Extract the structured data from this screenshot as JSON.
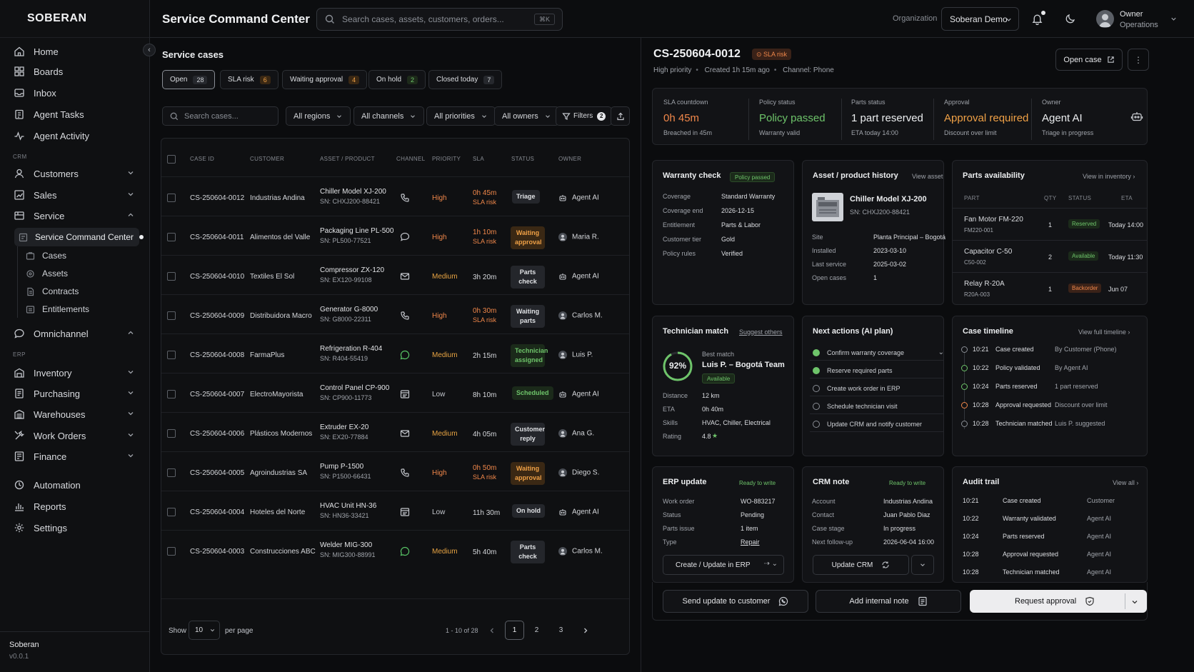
{
  "brand": {
    "name": "SOBERAN",
    "footer_name": "Soberan",
    "version": "v0.0.1"
  },
  "nav": {
    "home": "Home",
    "boards": "Boards",
    "inbox": "Inbox",
    "agent_tasks": "Agent Tasks",
    "agent_activity": "Agent Activity",
    "crm_label": "CRM",
    "customers": "Customers",
    "sales": "Sales",
    "service": "Service",
    "service_command_center": "Service Command Center",
    "cases": "Cases",
    "assets": "Assets",
    "contracts": "Contracts",
    "entitlements": "Entitlements",
    "omnichannel": "Omnichannel",
    "erp_label": "ERP",
    "inventory": "Inventory",
    "purchasing": "Purchasing",
    "warehouses": "Warehouses",
    "work_orders": "Work Orders",
    "finance": "Finance",
    "automation": "Automation",
    "reports": "Reports",
    "settings": "Settings"
  },
  "topbar": {
    "title": "Service Command Center",
    "search_placeholder": "Search cases, assets, customers, orders...",
    "search_kbd": "⌘K",
    "org_label": "Organization",
    "org_value": "Soberan Demo",
    "user_name": "Owner",
    "user_role": "Operations"
  },
  "cases": {
    "title": "Service cases",
    "tabs": [
      {
        "label": "Open",
        "count": "28"
      },
      {
        "label": "SLA risk",
        "count": "6"
      },
      {
        "label": "Waiting approval",
        "count": "4"
      },
      {
        "label": "On hold",
        "count": "2"
      },
      {
        "label": "Closed today",
        "count": "7"
      }
    ],
    "search_placeholder": "Search cases...",
    "filters": {
      "regions": "All regions",
      "channels": "All channels",
      "priorities": "All priorities",
      "owners": "All owners",
      "filters": "Filters",
      "filters_count": "2"
    },
    "columns": {
      "case_id": "CASE ID",
      "customer": "CUSTOMER",
      "asset": "ASSET / PRODUCT",
      "channel": "CHANNEL",
      "priority": "PRIORITY",
      "sla": "SLA",
      "status": "STATUS",
      "owner": "OWNER"
    },
    "rows": [
      {
        "id": "CS-250604-0012",
        "customer": "Industrias Andina",
        "asset": "Chiller Model XJ-200",
        "sn": "SN: CHXJ200-88421",
        "channel": "phone",
        "priority": "High",
        "sla": "0h 45m",
        "sla_note": "SLA risk",
        "status": "Triage",
        "owner": "Agent AI"
      },
      {
        "id": "CS-250604-0011",
        "customer": "Alimentos del Valle",
        "asset": "Packaging Line PL-500",
        "sn": "SN: PL500-77521",
        "channel": "chat",
        "priority": "High",
        "sla": "1h 10m",
        "sla_note": "SLA risk",
        "status": "Waiting approval",
        "owner": "Maria R."
      },
      {
        "id": "CS-250604-0010",
        "customer": "Textiles El Sol",
        "asset": "Compressor ZX-120",
        "sn": "SN: EX120-99108",
        "channel": "email",
        "priority": "Medium",
        "sla": "3h 20m",
        "sla_note": "",
        "status": "Parts check",
        "owner": "Agent AI"
      },
      {
        "id": "CS-250604-0009",
        "customer": "Distribuidora Macro",
        "asset": "Generator G-8000",
        "sn": "SN: G8000-22311",
        "channel": "phone",
        "priority": "High",
        "sla": "0h 30m",
        "sla_note": "SLA risk",
        "status": "Waiting parts",
        "owner": "Carlos M."
      },
      {
        "id": "CS-250604-0008",
        "customer": "FarmaPlus",
        "asset": "Refrigeration R-404",
        "sn": "SN: R404-55419",
        "channel": "whatsapp",
        "priority": "Medium",
        "sla": "2h 15m",
        "sla_note": "",
        "status": "Technician assigned",
        "owner": "Luis P."
      },
      {
        "id": "CS-250604-0007",
        "customer": "ElectroMayorista",
        "asset": "Control Panel CP-900",
        "sn": "SN: CP900-11773",
        "channel": "portal",
        "priority": "Low",
        "sla": "8h 10m",
        "sla_note": "",
        "status": "Scheduled",
        "owner": "Agent AI"
      },
      {
        "id": "CS-250604-0006",
        "customer": "Plásticos Modernos",
        "asset": "Extruder EX-20",
        "sn": "SN: EX20-77884",
        "channel": "email",
        "priority": "Medium",
        "sla": "4h 05m",
        "sla_note": "",
        "status": "Customer reply",
        "owner": "Ana G."
      },
      {
        "id": "CS-250604-0005",
        "customer": "Agroindustrias SA",
        "asset": "Pump P-1500",
        "sn": "SN: P1500-66431",
        "channel": "phone",
        "priority": "High",
        "sla": "0h 50m",
        "sla_note": "SLA risk",
        "status": "Waiting approval",
        "owner": "Diego S."
      },
      {
        "id": "CS-250604-0004",
        "customer": "Hoteles del Norte",
        "asset": "HVAC Unit HN-36",
        "sn": "SN: HN36-33421",
        "channel": "portal",
        "priority": "Low",
        "sla": "11h 30m",
        "sla_note": "",
        "status": "On hold",
        "owner": "Agent AI"
      },
      {
        "id": "CS-250604-0003",
        "customer": "Construcciones ABC",
        "asset": "Welder MIG-300",
        "sn": "SN: MIG300-88991",
        "channel": "whatsapp",
        "priority": "Medium",
        "sla": "5h 40m",
        "sla_note": "",
        "status": "Parts check",
        "owner": "Carlos M."
      }
    ],
    "footer": {
      "show": "Show",
      "per_page_value": "10",
      "per_page": "per page",
      "range": "1 - 10 of 28",
      "pages": [
        "1",
        "2",
        "3"
      ]
    }
  },
  "detail": {
    "case_id": "CS-250604-0012",
    "sla_pill": "SLA risk",
    "priority": "High priority",
    "created": "Created 1h 15m ago",
    "channel": "Channel: Phone",
    "open_case": "Open case",
    "kpis": [
      {
        "label": "SLA countdown",
        "value": "0h 45m",
        "sub": "Breached in 45m",
        "color": "#f0874a"
      },
      {
        "label": "Policy status",
        "value": "Policy passed",
        "sub": "Warranty valid",
        "color": "#6ec46a"
      },
      {
        "label": "Parts status",
        "value": "1 part reserved",
        "sub": "ETA today 14:00",
        "color": "#eceef0"
      },
      {
        "label": "Approval",
        "value": "Approval required",
        "sub": "Discount over limit",
        "color": "#f0a146"
      },
      {
        "label": "Owner",
        "value": "Agent AI",
        "sub": "Triage in progress",
        "color": "#eceef0"
      }
    ],
    "warranty": {
      "title": "Warranty check",
      "pill": "Policy passed",
      "rows": [
        {
          "k": "Coverage",
          "v": "Standard Warranty"
        },
        {
          "k": "Coverage end",
          "v": "2026-12-15"
        },
        {
          "k": "Entitlement",
          "v": "Parts & Labor"
        },
        {
          "k": "Customer tier",
          "v": "Gold"
        },
        {
          "k": "Policy rules",
          "v": "Verified"
        }
      ]
    },
    "asset": {
      "title": "Asset / product history",
      "link": "View asset",
      "name": "Chiller Model XJ-200",
      "sn": "SN: CHXJ200-88421",
      "rows": [
        {
          "k": "Site",
          "v": "Planta Principal – Bogotá"
        },
        {
          "k": "Installed",
          "v": "2023-03-10"
        },
        {
          "k": "Last service",
          "v": "2025-03-02"
        },
        {
          "k": "Open cases",
          "v": "1"
        }
      ]
    },
    "parts": {
      "title": "Parts availability",
      "link": "View in inventory",
      "cols": {
        "part": "PART",
        "qty": "QTY",
        "status": "STATUS",
        "eta": "ETA"
      },
      "rows": [
        {
          "name": "Fan Motor FM-220",
          "code": "FM220-001",
          "qty": "1",
          "status": "Reserved",
          "eta": "Today 14:00",
          "tone": "green"
        },
        {
          "name": "Capacitor C-50",
          "code": "C50-002",
          "qty": "2",
          "status": "Available",
          "eta": "Today 11:30",
          "tone": "green"
        },
        {
          "name": "Relay R-20A",
          "code": "R20A-003",
          "qty": "1",
          "status": "Backorder",
          "eta": "Jun 07",
          "tone": "orange"
        }
      ]
    },
    "tech": {
      "title": "Technician match",
      "link": "Suggest others",
      "score": "92%",
      "score_value": 0.92,
      "best": "Best match",
      "name": "Luis P. – Bogotá Team",
      "pill": "Available",
      "rows": [
        {
          "k": "Distance",
          "v": "12 km"
        },
        {
          "k": "ETA",
          "v": "0h 40m"
        },
        {
          "k": "Skills",
          "v": "HVAC, Chiller, Electrical"
        },
        {
          "k": "Rating",
          "v": "4.8"
        }
      ]
    },
    "actions": {
      "title": "Next actions (AI plan)",
      "rows": [
        {
          "label": "Confirm warranty coverage",
          "done": true
        },
        {
          "label": "Reserve required parts",
          "done": true
        },
        {
          "label": "Create work order in ERP",
          "done": false
        },
        {
          "label": "Schedule technician visit",
          "done": false
        },
        {
          "label": "Update CRM and notify customer",
          "done": false
        }
      ]
    },
    "timeline": {
      "title": "Case timeline",
      "link": "View full timeline",
      "rows": [
        {
          "t": "10:21",
          "e": "Case created",
          "d": "By Customer (Phone)",
          "tone": "gray"
        },
        {
          "t": "10:22",
          "e": "Policy validated",
          "d": "By Agent AI",
          "tone": "green"
        },
        {
          "t": "10:24",
          "e": "Parts reserved",
          "d": "1 part reserved",
          "tone": "green"
        },
        {
          "t": "10:28",
          "e": "Approval requested",
          "d": "Discount over limit",
          "tone": "orange"
        },
        {
          "t": "10:28",
          "e": "Technician matched",
          "d": "Luis P. suggested",
          "tone": "gray"
        }
      ]
    },
    "erp": {
      "title": "ERP update",
      "pill": "Ready to write",
      "rows": [
        {
          "k": "Work order",
          "v": "WO-883217"
        },
        {
          "k": "Status",
          "v": "Pending"
        },
        {
          "k": "Parts issue",
          "v": "1 item"
        },
        {
          "k": "Type",
          "v": "Repair"
        }
      ],
      "button": "Create / Update in ERP"
    },
    "crm": {
      "title": "CRM note",
      "pill": "Ready to write",
      "rows": [
        {
          "k": "Account",
          "v": "Industrias Andina"
        },
        {
          "k": "Contact",
          "v": "Juan Pablo Diaz"
        },
        {
          "k": "Case stage",
          "v": "In progress"
        },
        {
          "k": "Next follow-up",
          "v": "2026-06-04 16:00"
        }
      ],
      "button": "Update CRM"
    },
    "audit": {
      "title": "Audit trail",
      "link": "View all",
      "rows": [
        {
          "t": "10:21",
          "e": "Case created",
          "a": "Customer"
        },
        {
          "t": "10:22",
          "e": "Warranty validated",
          "a": "Agent AI"
        },
        {
          "t": "10:24",
          "e": "Parts reserved",
          "a": "Agent AI"
        },
        {
          "t": "10:28",
          "e": "Approval requested",
          "a": "Agent AI"
        },
        {
          "t": "10:28",
          "e": "Technician matched",
          "a": "Agent AI"
        }
      ]
    },
    "bottom": {
      "send": "Send update to customer",
      "note": "Add internal note",
      "approval": "Request approval"
    }
  }
}
